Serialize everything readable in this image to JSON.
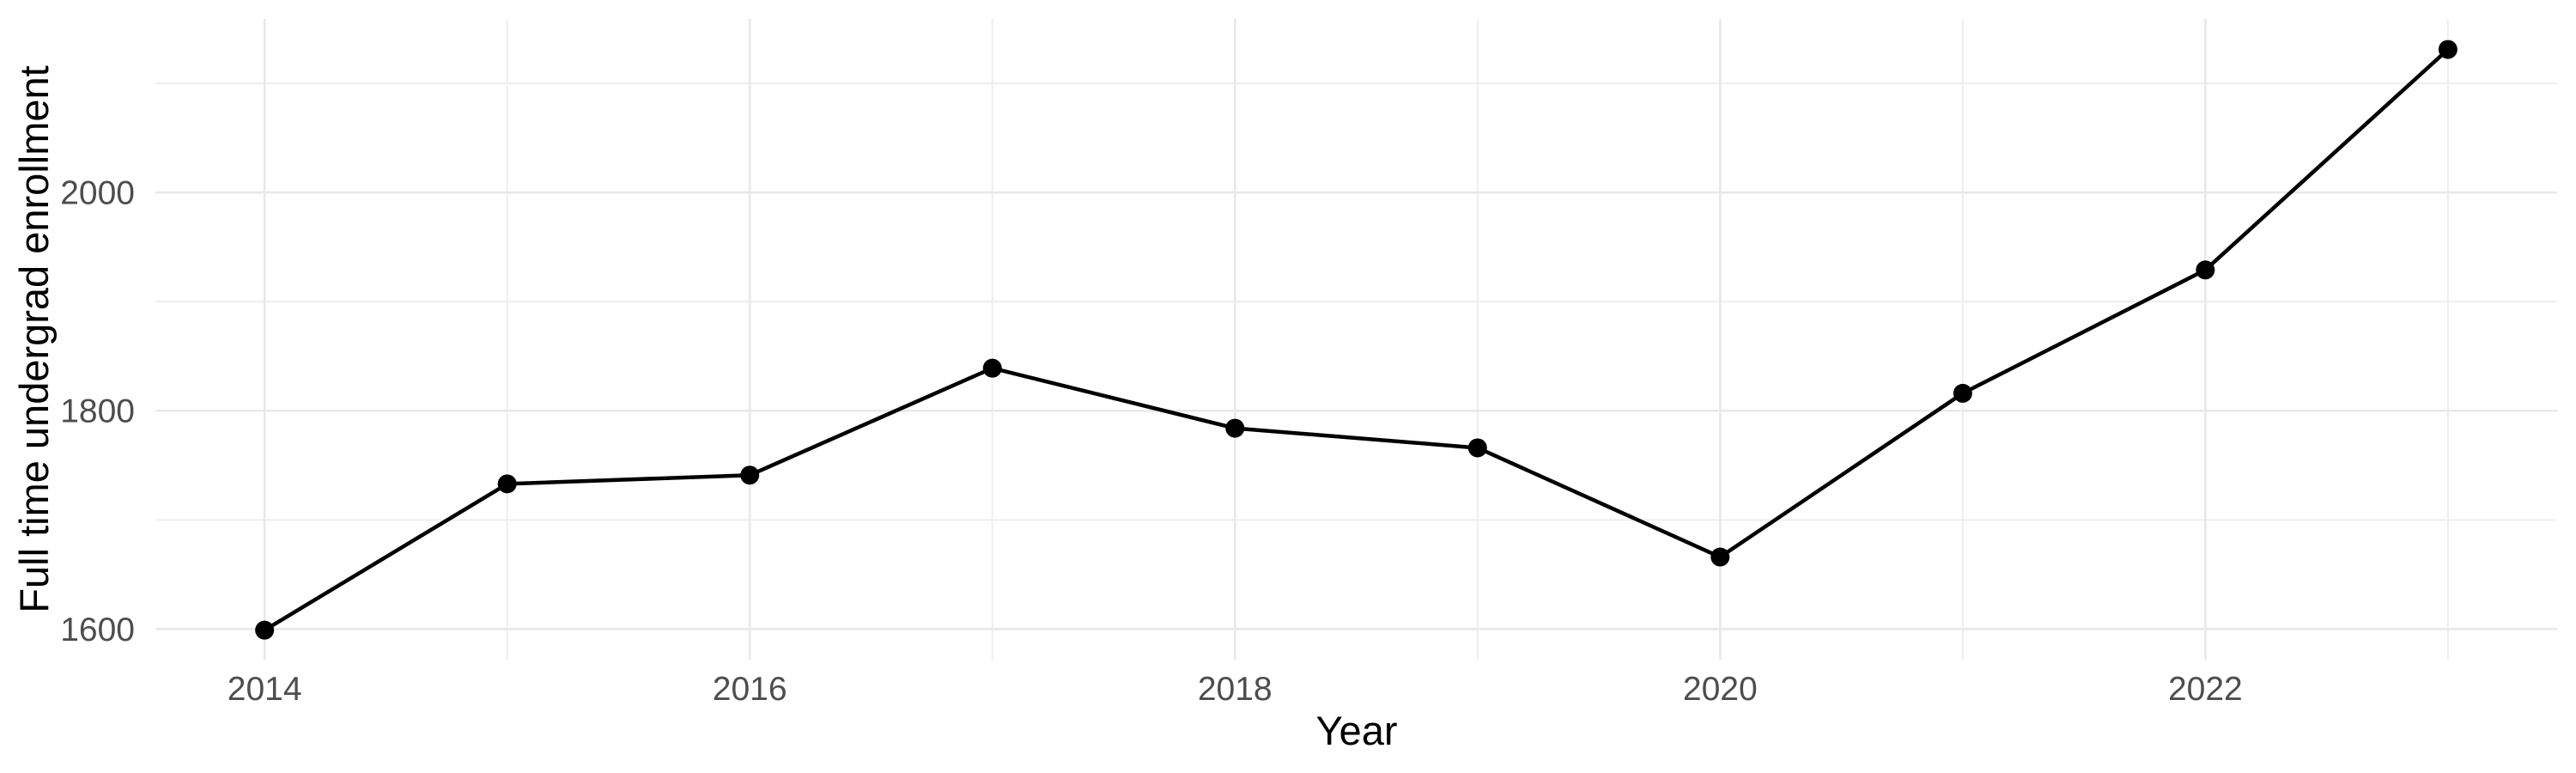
{
  "chart_data": {
    "type": "line",
    "title": "",
    "xlabel": "Year",
    "ylabel": "Full time undergrad enrollment",
    "series": [
      {
        "name": "Full time undergrad enrollment",
        "x": [
          2014,
          2015,
          2016,
          2017,
          2018,
          2019,
          2020,
          2021,
          2022,
          2023
        ],
        "values": [
          1599,
          1733,
          1741,
          1839,
          1784,
          1766,
          1666,
          1816,
          1929,
          2131
        ]
      }
    ],
    "x_ticks": [
      2014,
      2016,
      2018,
      2020,
      2022
    ],
    "x_minor_ticks": [
      2015,
      2017,
      2019,
      2021,
      2023
    ],
    "y_ticks": [
      1600,
      1800,
      2000
    ],
    "y_minor_ticks": [
      1700,
      1900,
      2100
    ],
    "xlim": [
      2013.55,
      2023.45
    ],
    "ylim": [
      1572,
      2159
    ],
    "grid": "on",
    "legend": "none",
    "marker": "point",
    "colors": {
      "line": "#000000",
      "point": "#000000",
      "grid_major": "#e8e8e8",
      "grid_minor": "#eeeeee",
      "tick_text": "#4d4d4d",
      "axis_title": "#000000",
      "background": "#ffffff"
    }
  }
}
